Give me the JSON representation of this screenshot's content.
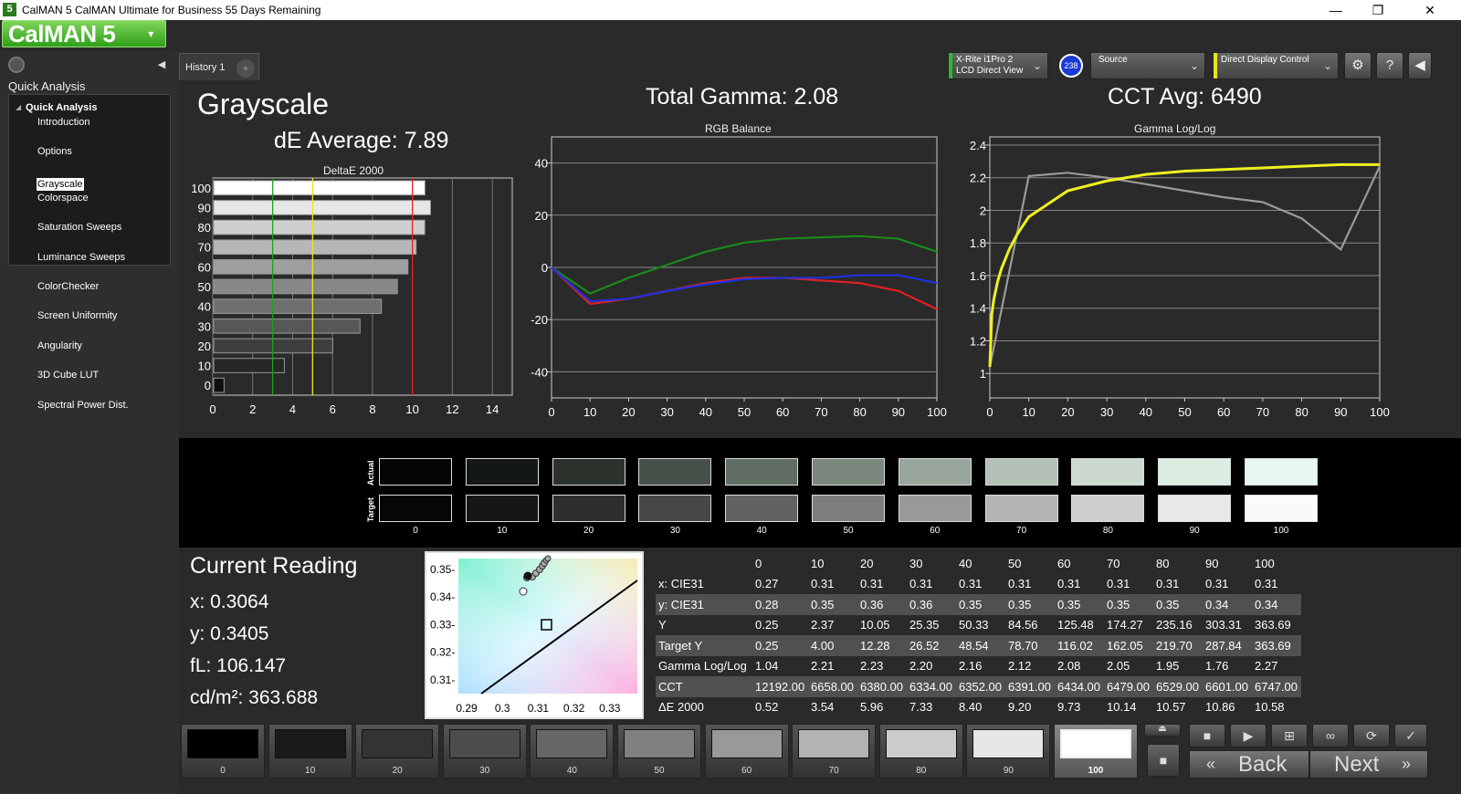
{
  "window": {
    "title": "CalMAN 5 CalMAN Ultimate for Business 55 Days Remaining",
    "app_icon_label": "5",
    "minimize": "—",
    "maximize": "❐",
    "close": "✕"
  },
  "logo": {
    "text": "CalMAN 5",
    "menu_icon": "▾"
  },
  "sidebar": {
    "section_title": "Quick Analysis",
    "tree_root": "Quick Analysis",
    "items": [
      "Introduction",
      "Options",
      "Grayscale",
      "Colorspace",
      "Saturation Sweeps",
      "Luminance Sweeps",
      "ColorChecker",
      "Screen Uniformity",
      "Angularity",
      "3D Cube LUT",
      "Spectral Power Dist."
    ],
    "selected": "Grayscale"
  },
  "tabs": {
    "history": "History 1",
    "add": "+"
  },
  "devices": {
    "meter_line1": "X-Rite i1Pro 2",
    "meter_line2": "LCD Direct View",
    "meter_badge": "238",
    "source": "Source",
    "display": "Direct Display Control",
    "meter_color": "#2db82d",
    "display_color": "#e6e61a"
  },
  "toolbar_icons": [
    "gear-icon",
    "help-icon",
    "collapse-icon"
  ],
  "main": {
    "title": "Grayscale",
    "de_average": "dE Average: 7.89",
    "total_gamma": "Total Gamma: 2.08",
    "cct_avg": "CCT Avg: 6490"
  },
  "chart_data": [
    {
      "type": "bar",
      "title": "DeltaE 2000",
      "categories": [
        "100",
        "90",
        "80",
        "70",
        "60",
        "50",
        "40",
        "30",
        "20",
        "10",
        "0"
      ],
      "values": [
        10.58,
        10.86,
        10.57,
        10.14,
        9.73,
        9.2,
        8.4,
        7.33,
        5.96,
        3.54,
        0.52
      ],
      "xlim": [
        0,
        15
      ],
      "xticks": [
        0,
        2,
        4,
        6,
        8,
        10,
        12,
        14
      ],
      "reference_lines": [
        {
          "x": 3,
          "color": "#1fa01f"
        },
        {
          "x": 5,
          "color": "#e6e61a"
        },
        {
          "x": 10,
          "color": "#e02020"
        }
      ]
    },
    {
      "type": "line",
      "title": "RGB Balance",
      "x": [
        0,
        10,
        20,
        30,
        40,
        50,
        60,
        70,
        80,
        90,
        100
      ],
      "ylim": [
        -50,
        50
      ],
      "yticks": [
        40,
        20,
        0,
        -20,
        -40
      ],
      "xticks": [
        0,
        10,
        20,
        30,
        40,
        50,
        60,
        70,
        80,
        90,
        100
      ],
      "series": [
        {
          "color": "#e02020",
          "values": [
            0,
            -14,
            -12,
            -9,
            -6,
            -4,
            -4,
            -5,
            -6,
            -9,
            -16
          ]
        },
        {
          "color": "#1a8a1a",
          "values": [
            0,
            -10,
            -4,
            1,
            6,
            9.5,
            11,
            11.5,
            12,
            11,
            6
          ]
        },
        {
          "color": "#2030e0",
          "values": [
            0,
            -13,
            -12,
            -9,
            -6.5,
            -4.5,
            -4,
            -4,
            -3,
            -3,
            -6
          ]
        }
      ]
    },
    {
      "type": "line",
      "title": "Gamma Log/Log",
      "x": [
        0,
        10,
        20,
        30,
        40,
        50,
        60,
        70,
        80,
        90,
        100
      ],
      "ylim": [
        0.85,
        2.45
      ],
      "yticks": [
        2.4,
        2.2,
        2,
        1.8,
        1.6,
        1.4,
        1.2,
        1
      ],
      "xticks": [
        0,
        10,
        20,
        30,
        40,
        50,
        60,
        70,
        80,
        90,
        100
      ],
      "series": [
        {
          "color": "#9a9a9a",
          "values": [
            1.04,
            2.21,
            2.23,
            2.2,
            2.16,
            2.12,
            2.08,
            2.05,
            1.95,
            1.76,
            2.27
          ]
        },
        {
          "color": "#f0f020",
          "values": [
            1.04,
            1.96,
            2.12,
            2.18,
            2.22,
            2.24,
            2.25,
            2.26,
            2.27,
            2.28,
            2.28
          ]
        }
      ]
    }
  ],
  "swatches": {
    "row_actual": "Actual",
    "row_target": "Target",
    "labels": [
      "0",
      "10",
      "20",
      "30",
      "40",
      "50",
      "60",
      "70",
      "80",
      "90",
      "100"
    ],
    "actual_colors": [
      "#050505",
      "#121714",
      "#2b322c",
      "#46514a",
      "#5f6d63",
      "#7a887e",
      "#98a69b",
      "#b3c1b6",
      "#cbd9ce",
      "#dcede2",
      "#e6f8ef"
    ],
    "target_colors": [
      "#060606",
      "#161616",
      "#2e2e2e",
      "#474747",
      "#626262",
      "#7d7d7d",
      "#999999",
      "#b4b4b4",
      "#cfcfcf",
      "#e8e8e8",
      "#fafafa"
    ]
  },
  "reading": {
    "title": "Current Reading",
    "x": "x: 0.3064",
    "y": "y: 0.3405",
    "fl": "fL: 106.147",
    "cdm2": "cd/m²: 363.688"
  },
  "cie_plot": {
    "yticks": [
      "0.35-",
      "0.34-",
      "0.33-",
      "0.32-",
      "0.31-"
    ],
    "xticks": [
      "0.29",
      "0.3",
      "0.31",
      "0.32",
      "0.33"
    ]
  },
  "table": {
    "columns": [
      "",
      "0",
      "10",
      "20",
      "30",
      "40",
      "50",
      "60",
      "70",
      "80",
      "90",
      "100"
    ],
    "rows": [
      [
        "x: CIE31",
        "0.27",
        "0.31",
        "0.31",
        "0.31",
        "0.31",
        "0.31",
        "0.31",
        "0.31",
        "0.31",
        "0.31",
        "0.31"
      ],
      [
        "y: CIE31",
        "0.28",
        "0.35",
        "0.36",
        "0.36",
        "0.35",
        "0.35",
        "0.35",
        "0.35",
        "0.35",
        "0.34",
        "0.34"
      ],
      [
        "Y",
        "0.25",
        "2.37",
        "10.05",
        "25.35",
        "50.33",
        "84.56",
        "125.48",
        "174.27",
        "235.16",
        "303.31",
        "363.69"
      ],
      [
        "Target Y",
        "0.25",
        "4.00",
        "12.28",
        "26.52",
        "48.54",
        "78.70",
        "116.02",
        "162.05",
        "219.70",
        "287.84",
        "363.69"
      ],
      [
        "Gamma Log/Log",
        "1.04",
        "2.21",
        "2.23",
        "2.20",
        "2.16",
        "2.12",
        "2.08",
        "2.05",
        "1.95",
        "1.76",
        "2.27"
      ],
      [
        "CCT",
        "12192.00",
        "6658.00",
        "6380.00",
        "6334.00",
        "6352.00",
        "6391.00",
        "6434.00",
        "6479.00",
        "6529.00",
        "6601.00",
        "6747.00"
      ],
      [
        "ΔE 2000",
        "0.52",
        "3.54",
        "5.96",
        "7.33",
        "8.40",
        "9.20",
        "9.73",
        "10.14",
        "10.57",
        "10.86",
        "10.58"
      ]
    ]
  },
  "bottom": {
    "patch_labels": [
      "0",
      "10",
      "20",
      "30",
      "40",
      "50",
      "60",
      "70",
      "80",
      "90",
      "100"
    ],
    "patch_colors": [
      "#000000",
      "#1a1a1a",
      "#333333",
      "#4d4d4d",
      "#666666",
      "#808080",
      "#999999",
      "#b3b3b3",
      "#cccccc",
      "#e6e6e6",
      "#ffffff"
    ],
    "active": "100",
    "back": "Back",
    "next": "Next",
    "back_icon": "«",
    "next_icon": "»"
  }
}
